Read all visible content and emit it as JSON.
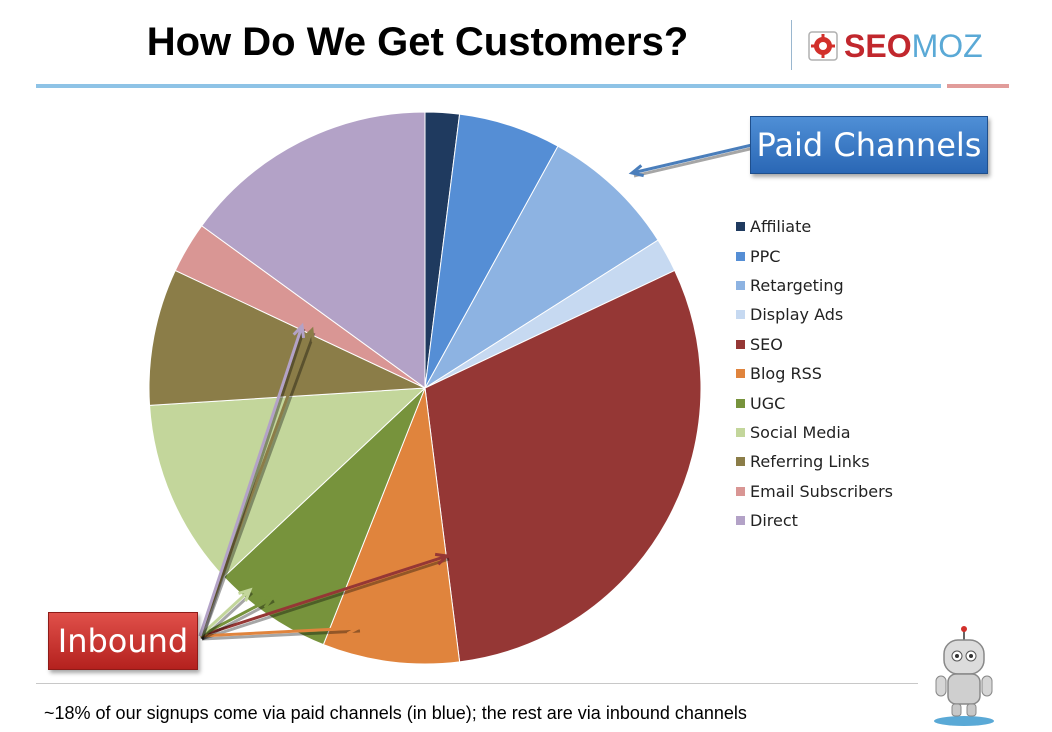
{
  "header": {
    "title": "How Do We Get Customers?",
    "logo": {
      "seo": "SEO",
      "moz": "MOZ"
    }
  },
  "callouts": {
    "paid": "Paid Channels",
    "inbound": "Inbound"
  },
  "footer": {
    "note": "~18% of our signups come via paid channels (in blue); the rest are via inbound channels"
  },
  "chart_data": {
    "type": "pie",
    "title": "",
    "start_angle": "12 o'clock, clockwise",
    "legend_position": "right",
    "categories": [
      "Affiliate",
      "PPC",
      "Retargeting",
      "Display Ads",
      "SEO",
      "Blog RSS",
      "UGC",
      "Social Media",
      "Referring Links",
      "Email Subscribers",
      "Direct"
    ],
    "values": [
      2,
      6,
      8,
      2,
      30,
      8,
      7,
      11,
      8,
      3,
      15
    ],
    "colors": [
      "#1f3a5f",
      "#558ed5",
      "#8db3e2",
      "#c6d9f1",
      "#953735",
      "#e0843d",
      "#77933c",
      "#c3d69b",
      "#8b7d48",
      "#d99694",
      "#b3a2c7"
    ]
  }
}
